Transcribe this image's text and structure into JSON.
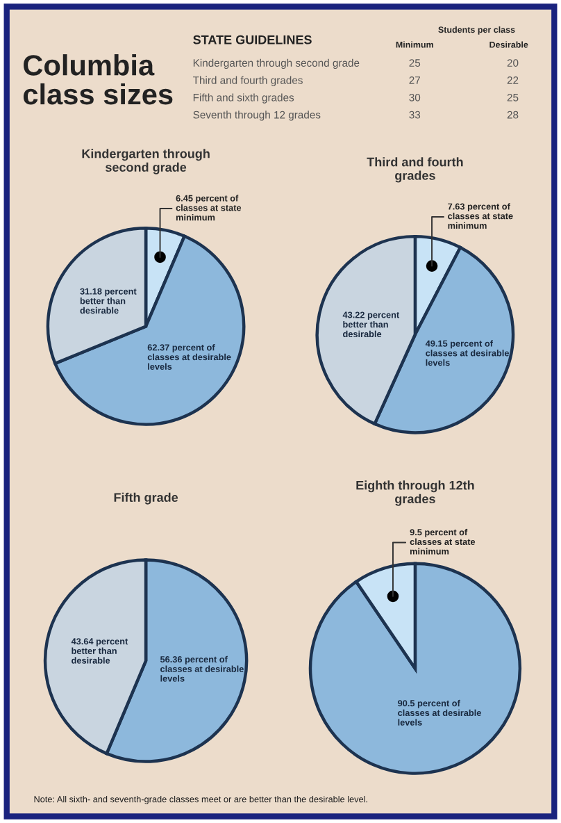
{
  "chart_data": [
    {
      "type": "other",
      "title": "Columbia class sizes",
      "subtitle": "STATE GUIDELINES",
      "legend_title": "Students per class",
      "data_labels": true,
      "categories": [
        "Kindergarten through second grade",
        "Third and fourth grades",
        "Fifth and sixth grades",
        "Seventh through 12 grades"
      ],
      "series": [
        {
          "name": "Minimum",
          "values": [
            25,
            27,
            30,
            33
          ]
        },
        {
          "name": "Desirable",
          "values": [
            20,
            22,
            25,
            28
          ]
        }
      ]
    },
    {
      "type": "pie",
      "title": "Kindergarten through second grade",
      "categories": [
        "6.45 percent of classes at state minimum",
        "62.37 percent of classes at desirable levels",
        "31.18 percent better than desirable"
      ],
      "values": [
        6.45,
        62.37,
        31.18
      ],
      "colors": [
        "#c8e3f6",
        "#8db8dc",
        "#c9d5e0"
      ]
    },
    {
      "type": "pie",
      "title": "Third and fourth grades",
      "categories": [
        "7.63 percent of classes at state minimum",
        "49.15 percent of classes at desirable levels",
        "43.22 percent better than desirable"
      ],
      "values": [
        7.63,
        49.15,
        43.22
      ],
      "colors": [
        "#c8e3f6",
        "#8db8dc",
        "#c9d5e0"
      ]
    },
    {
      "type": "pie",
      "title": "Fifth grade",
      "categories": [
        "56.36 percent of classes at desirable levels",
        "43.64 percent better than desirable"
      ],
      "values": [
        56.36,
        43.64
      ],
      "colors": [
        "#8db8dc",
        "#c9d5e0"
      ]
    },
    {
      "type": "pie",
      "title": "Eighth through 12th grades",
      "categories": [
        "90.5 percent of classes at desirable levels",
        "9.5 percent of classes at state minimum"
      ],
      "values": [
        90.5,
        9.5
      ],
      "colors": [
        "#8db8dc",
        "#c8e3f6"
      ],
      "annotations": [
        "Note: All sixth- and seventh-grade classes meet or are better than the desirable level."
      ]
    }
  ]
}
